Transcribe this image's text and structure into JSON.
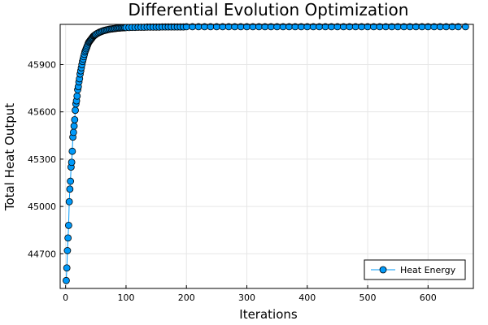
{
  "chart_data": {
    "type": "line",
    "title": "Differential Evolution Optimization",
    "xlabel": "Iterations",
    "ylabel": "Total Heat Output",
    "xlim": [
      -9,
      675
    ],
    "ylim": [
      44480,
      46155
    ],
    "x_ticks": [
      0,
      100,
      200,
      300,
      400,
      500,
      600
    ],
    "y_ticks": [
      44700,
      45000,
      45300,
      45600,
      45900
    ],
    "grid": true,
    "legend_position": "bottom-right",
    "marker": "circle",
    "colors": {
      "series": "#009AFA",
      "marker_edge": "#000000"
    },
    "series": [
      {
        "name": "Heat Energy",
        "x": [
          1,
          2,
          3,
          4,
          5,
          6,
          7,
          8,
          9,
          10,
          11,
          12,
          13,
          14,
          15,
          16,
          17,
          18,
          19,
          20,
          21,
          22,
          23,
          24,
          25,
          26,
          27,
          28,
          29,
          30,
          31,
          32,
          33,
          34,
          35,
          36,
          37,
          38,
          39,
          40,
          41,
          42,
          43,
          44,
          45,
          46,
          47,
          48,
          49,
          50,
          52,
          54,
          56,
          58,
          60,
          62,
          64,
          66,
          68,
          70,
          72,
          74,
          76,
          78,
          80,
          82,
          84,
          86,
          88,
          90,
          92,
          94,
          96,
          98,
          100,
          105,
          110,
          115,
          120,
          125,
          130,
          135,
          140,
          145,
          150,
          155,
          160,
          165,
          170,
          175,
          180,
          185,
          190,
          195,
          200,
          210,
          220,
          230,
          240,
          250,
          260,
          270,
          280,
          290,
          300,
          310,
          320,
          330,
          340,
          350,
          360,
          370,
          380,
          390,
          400,
          410,
          420,
          430,
          440,
          450,
          460,
          470,
          480,
          490,
          500,
          510,
          520,
          530,
          540,
          550,
          560,
          570,
          580,
          590,
          600,
          610,
          620,
          630,
          640,
          650,
          662
        ],
        "y": [
          44530,
          44610,
          44720,
          44800,
          44880,
          45030,
          45110,
          45160,
          45250,
          45280,
          45350,
          45440,
          45470,
          45510,
          45550,
          45610,
          45650,
          45670,
          45700,
          45740,
          45760,
          45790,
          45810,
          45840,
          45860,
          45880,
          45900,
          45920,
          45935,
          45950,
          45965,
          45980,
          45990,
          46000,
          46010,
          46020,
          46030,
          46040,
          46045,
          46050,
          46055,
          46060,
          46065,
          46070,
          46075,
          46080,
          46083,
          46086,
          46089,
          46092,
          46097,
          46101,
          46105,
          46108,
          46111,
          46114,
          46116,
          46118,
          46120,
          46122,
          46124,
          46125,
          46126,
          46127,
          46128,
          46129,
          46130,
          46131,
          46132,
          46132,
          46133,
          46133,
          46134,
          46134,
          46135,
          46135,
          46136,
          46136,
          46137,
          46137,
          46137,
          46138,
          46138,
          46138,
          46138,
          46138,
          46139,
          46139,
          46139,
          46139,
          46139,
          46139,
          46139,
          46139,
          46140,
          46140,
          46140,
          46140,
          46140,
          46140,
          46140,
          46140,
          46140,
          46140,
          46140,
          46140,
          46140,
          46140,
          46140,
          46140,
          46140,
          46140,
          46140,
          46140,
          46140,
          46140,
          46140,
          46140,
          46140,
          46140,
          46140,
          46140,
          46140,
          46140,
          46140,
          46140,
          46140,
          46140,
          46140,
          46140,
          46140,
          46140,
          46140,
          46140,
          46140,
          46140,
          46140,
          46140,
          46140,
          46140,
          46140
        ]
      }
    ]
  }
}
